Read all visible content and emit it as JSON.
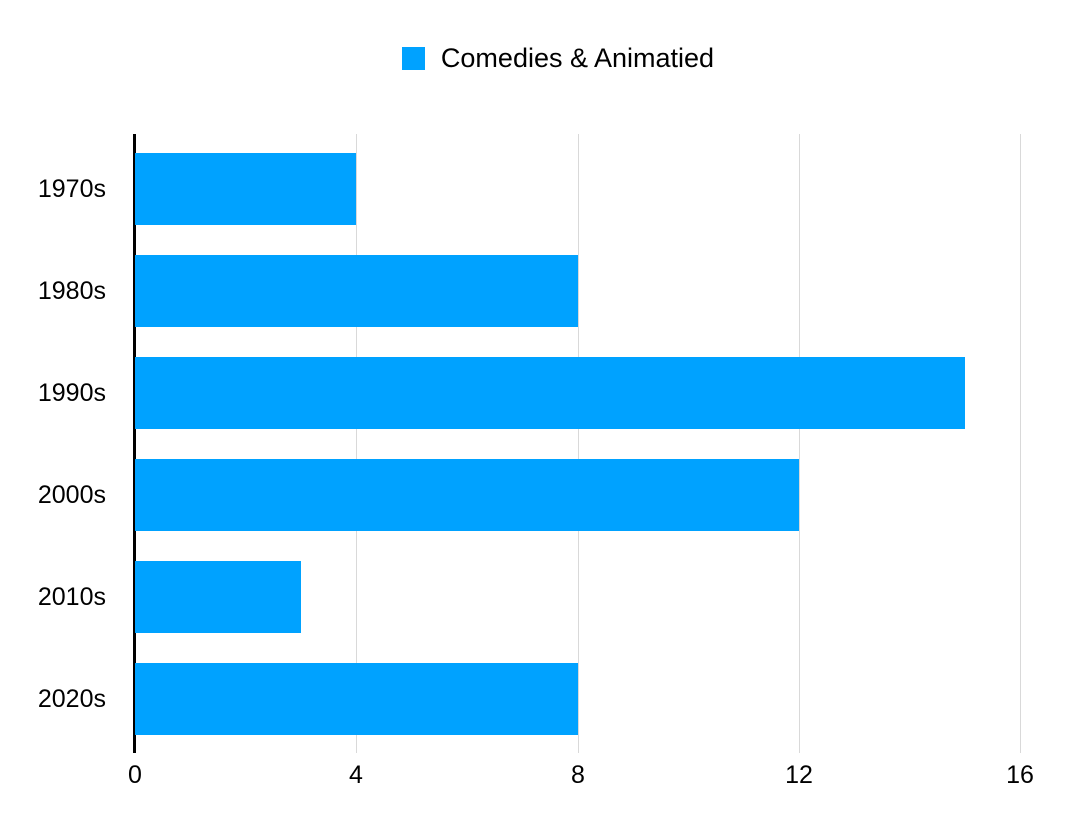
{
  "legend": {
    "label": "Comedies & Animatied",
    "swatch_color": "#00A2FF"
  },
  "chart_data": {
    "type": "bar",
    "orientation": "horizontal",
    "title": "",
    "categories": [
      "1970s",
      "1980s",
      "1990s",
      "2000s",
      "2010s",
      "2020s"
    ],
    "series": [
      {
        "name": "Comedies & Animatied",
        "values": [
          4,
          8,
          15,
          12,
          3,
          8
        ]
      }
    ],
    "xlabel": "",
    "ylabel": "",
    "xlim": [
      0,
      16
    ],
    "x_ticks": [
      "0",
      "4",
      "8",
      "12",
      "16"
    ],
    "x_tick_values": [
      0,
      4,
      8,
      12,
      16
    ],
    "grid": "vertical gridlines at 4, 8, 12, 16",
    "legend_position": "top-center",
    "colors": {
      "bar": "#00A2FF",
      "gridline": "#D9D9D9",
      "axis": "#000000",
      "text": "#000000",
      "background": "#FFFFFF"
    }
  }
}
